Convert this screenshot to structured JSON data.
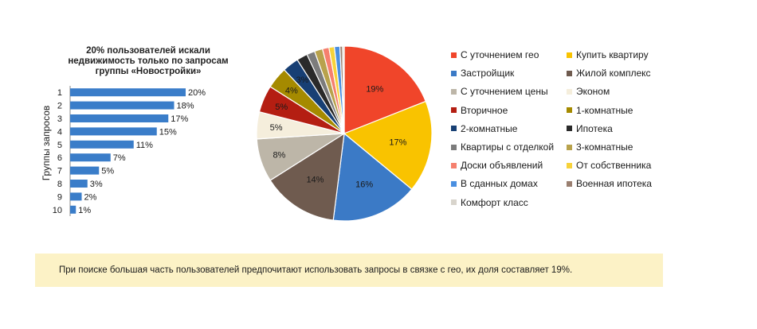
{
  "colors": {
    "bar": "#3a7dc9",
    "note_bg": "#fcf2c6"
  },
  "chart_data": [
    {
      "type": "bar",
      "orientation": "horizontal",
      "title": "20% пользователей искали недвижимость только по запросам группы «Новостройки»",
      "ylabel": "Группы запросов",
      "categories": [
        "1",
        "2",
        "3",
        "4",
        "5",
        "6",
        "7",
        "8",
        "9",
        "10"
      ],
      "values": [
        20,
        18,
        17,
        15,
        11,
        7,
        5,
        3,
        2,
        1
      ],
      "data_labels": [
        "20%",
        "18%",
        "17%",
        "15%",
        "11%",
        "7%",
        "5%",
        "3%",
        "2%",
        "1%"
      ],
      "xlim": [
        0,
        20
      ],
      "grid": false
    },
    {
      "type": "pie",
      "legend": "right",
      "slices": [
        {
          "label": "С уточнением гео",
          "value": 19,
          "display": "19%",
          "color": "#f0452a"
        },
        {
          "label": "Купить квартиру",
          "value": 17,
          "display": "17%",
          "color": "#f9c300"
        },
        {
          "label": "Застройщик",
          "value": 16,
          "display": "16%",
          "color": "#3b7ac6"
        },
        {
          "label": "Жилой комплекс",
          "value": 14,
          "display": "14%",
          "color": "#6f5b4f"
        },
        {
          "label": "С уточнением цены",
          "value": 8,
          "display": "8%",
          "color": "#bdb6a8"
        },
        {
          "label": "Эконом",
          "value": 5,
          "display": "5%",
          "color": "#f5eedc"
        },
        {
          "label": "Вторичное",
          "value": 5,
          "display": "5%",
          "color": "#b41e12"
        },
        {
          "label": "1-комнатные",
          "value": 4,
          "display": "4%",
          "color": "#a58a00"
        },
        {
          "label": "2-комнатные",
          "value": 3,
          "display": "3%",
          "color": "#173f74"
        },
        {
          "label": "Ипотека",
          "value": 2,
          "display": "",
          "color": "#2a2a2a"
        },
        {
          "label": "Квартиры с отделкой",
          "value": 1.5,
          "display": "",
          "color": "#7c7c7c"
        },
        {
          "label": "3-комнатные",
          "value": 1.5,
          "display": "",
          "color": "#b8a24c"
        },
        {
          "label": "Доски объявлений",
          "value": 1.2,
          "display": "",
          "color": "#f5806e"
        },
        {
          "label": "От собственника",
          "value": 1,
          "display": "",
          "color": "#f7d23a"
        },
        {
          "label": "В сданных домах",
          "value": 1,
          "display": "",
          "color": "#4a8fe0"
        },
        {
          "label": "Военная ипотека",
          "value": 0.5,
          "display": "",
          "color": "#9a7f70"
        },
        {
          "label": "Комфорт класс",
          "value": 0.3,
          "display": "",
          "color": "#d8d4cc"
        }
      ]
    }
  ],
  "note": "При поиске большая часть пользователей предпочитают использовать запросы в связке с гео, их доля составляет 19%."
}
